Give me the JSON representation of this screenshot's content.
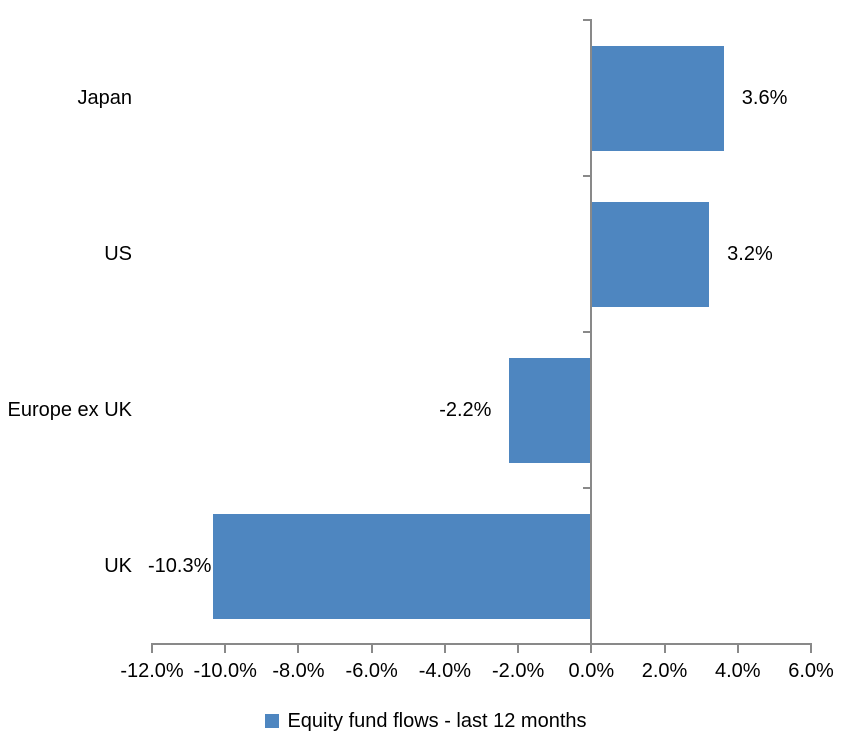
{
  "chart_data": {
    "type": "bar",
    "orientation": "horizontal",
    "categories": [
      "Japan",
      "US",
      "Europe ex UK",
      "UK"
    ],
    "series": [
      {
        "name": "Equity fund flows - last 12 months",
        "values": [
          3.6,
          3.2,
          -2.2,
          -10.3
        ],
        "data_labels": [
          "3.6%",
          "3.2%",
          "-2.2%",
          "-10.3%"
        ]
      }
    ],
    "xlim": [
      -12,
      6
    ],
    "x_ticks": [
      {
        "value": -12,
        "label": "-12.0%"
      },
      {
        "value": -10,
        "label": "-10.0%"
      },
      {
        "value": -8,
        "label": "-8.0%"
      },
      {
        "value": -6,
        "label": "-6.0%"
      },
      {
        "value": -4,
        "label": "-4.0%"
      },
      {
        "value": -2,
        "label": "-2.0%"
      },
      {
        "value": 0,
        "label": "0.0%"
      },
      {
        "value": 2,
        "label": "2.0%"
      },
      {
        "value": 4,
        "label": "4.0%"
      },
      {
        "value": 6,
        "label": "6.0%"
      }
    ],
    "grid": false,
    "legend_position": "bottom",
    "colors": {
      "bar": "#4E86C0",
      "axis": "#898989",
      "text": "#000000",
      "background": "#FFFFFF"
    }
  },
  "legend": {
    "label": "Equity fund flows - last 12 months"
  }
}
